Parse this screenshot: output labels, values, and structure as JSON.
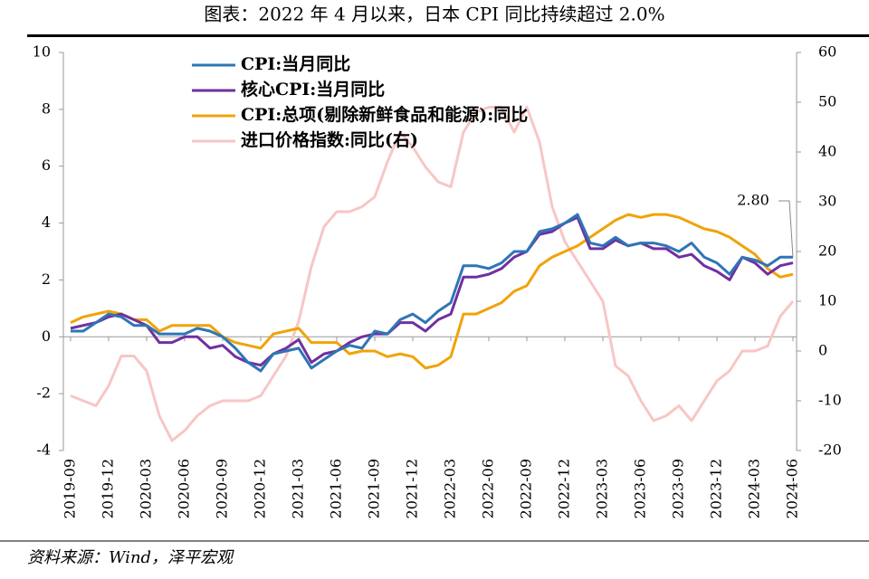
{
  "chart_data": {
    "type": "line",
    "title": "图表：2022 年 4 月以来，日本 CPI 同比持续超过 2.0%",
    "source": "资料来源：Wind，泽平宏观",
    "annotation": "2.80",
    "categories": [
      "2019-09",
      null,
      null,
      "2019-12",
      null,
      null,
      "2020-03",
      null,
      null,
      "2020-06",
      null,
      null,
      "2020-09",
      null,
      null,
      "2020-12",
      null,
      null,
      "2021-03",
      null,
      null,
      "2021-06",
      null,
      null,
      "2021-09",
      null,
      null,
      "2021-12",
      null,
      null,
      "2022-03",
      null,
      null,
      "2022-06",
      null,
      null,
      "2022-09",
      null,
      null,
      "2022-12",
      null,
      null,
      "2023-03",
      null,
      null,
      "2023-06",
      null,
      null,
      "2023-09",
      null,
      null,
      "2023-12",
      null,
      null,
      "2024-03",
      null,
      null,
      "2024-06"
    ],
    "ylim": [
      -4,
      10
    ],
    "yticks": [
      -4,
      -2,
      0,
      2,
      4,
      6,
      8,
      10
    ],
    "y2lim": [
      -20,
      60
    ],
    "y2ticks": [
      -20,
      -10,
      0,
      10,
      20,
      30,
      40,
      50,
      60
    ],
    "series": [
      {
        "name": "CPI:当月同比",
        "color": "#2e75b6",
        "values": [
          0.2,
          0.2,
          0.5,
          0.8,
          0.7,
          0.4,
          0.4,
          0.1,
          0.1,
          0.1,
          0.3,
          0.2,
          0.0,
          -0.4,
          -0.9,
          -1.2,
          -0.6,
          -0.5,
          -0.4,
          -1.1,
          -0.8,
          -0.5,
          -0.3,
          -0.4,
          0.2,
          0.1,
          0.6,
          0.8,
          0.5,
          0.9,
          1.2,
          2.5,
          2.5,
          2.4,
          2.6,
          3.0,
          3.0,
          3.7,
          3.8,
          4.0,
          4.3,
          3.3,
          3.2,
          3.5,
          3.2,
          3.3,
          3.3,
          3.2,
          3.0,
          3.3,
          2.8,
          2.6,
          2.2,
          2.8,
          2.7,
          2.5,
          2.8,
          2.8
        ]
      },
      {
        "name": "核心CPI:当月同比",
        "color": "#7030a0",
        "values": [
          0.3,
          0.4,
          0.5,
          0.7,
          0.8,
          0.6,
          0.4,
          -0.2,
          -0.2,
          0.0,
          0.0,
          -0.4,
          -0.3,
          -0.7,
          -0.9,
          -1.0,
          -0.6,
          -0.4,
          -0.1,
          -0.9,
          -0.6,
          -0.5,
          -0.2,
          0.0,
          0.1,
          0.1,
          0.5,
          0.5,
          0.2,
          0.6,
          0.8,
          2.1,
          2.1,
          2.2,
          2.4,
          2.8,
          3.0,
          3.6,
          3.7,
          4.0,
          4.2,
          3.1,
          3.1,
          3.4,
          3.2,
          3.3,
          3.1,
          3.1,
          2.8,
          2.9,
          2.5,
          2.3,
          2.0,
          2.8,
          2.6,
          2.2,
          2.5,
          2.6
        ]
      },
      {
        "name": "CPI:总项(剔除新鲜食品和能源):同比",
        "color": "#f0a30a",
        "values": [
          0.5,
          0.7,
          0.8,
          0.9,
          0.8,
          0.6,
          0.6,
          0.2,
          0.4,
          0.4,
          0.4,
          0.4,
          0.0,
          -0.2,
          -0.3,
          -0.4,
          0.1,
          0.2,
          0.3,
          -0.2,
          -0.2,
          -0.2,
          -0.6,
          -0.5,
          -0.5,
          -0.7,
          -0.6,
          -0.7,
          -1.1,
          -1.0,
          -0.7,
          0.8,
          0.8,
          1.0,
          1.2,
          1.6,
          1.8,
          2.5,
          2.8,
          3.0,
          3.2,
          3.5,
          3.8,
          4.1,
          4.3,
          4.2,
          4.3,
          4.3,
          4.2,
          4.0,
          3.8,
          3.7,
          3.5,
          3.2,
          2.9,
          2.4,
          2.1,
          2.2
        ]
      },
      {
        "name": "进口价格指数:同比(右)",
        "color": "#f7c6c6",
        "axis": "y2",
        "values": [
          -9,
          -10,
          -11,
          -7,
          -1,
          -1,
          -4,
          -13,
          -18,
          -16,
          -13,
          -11,
          -10,
          -10,
          -10,
          -9,
          -5,
          -1,
          6,
          17,
          25,
          28,
          28,
          29,
          31,
          38,
          44,
          41,
          37,
          34,
          33,
          44,
          48,
          49,
          49,
          44,
          49,
          42,
          29,
          22,
          18,
          14,
          10,
          -3,
          -5,
          -10,
          -14,
          -13,
          -11,
          -14,
          -10,
          -6,
          -4,
          0,
          0,
          1,
          7,
          10
        ]
      }
    ]
  }
}
